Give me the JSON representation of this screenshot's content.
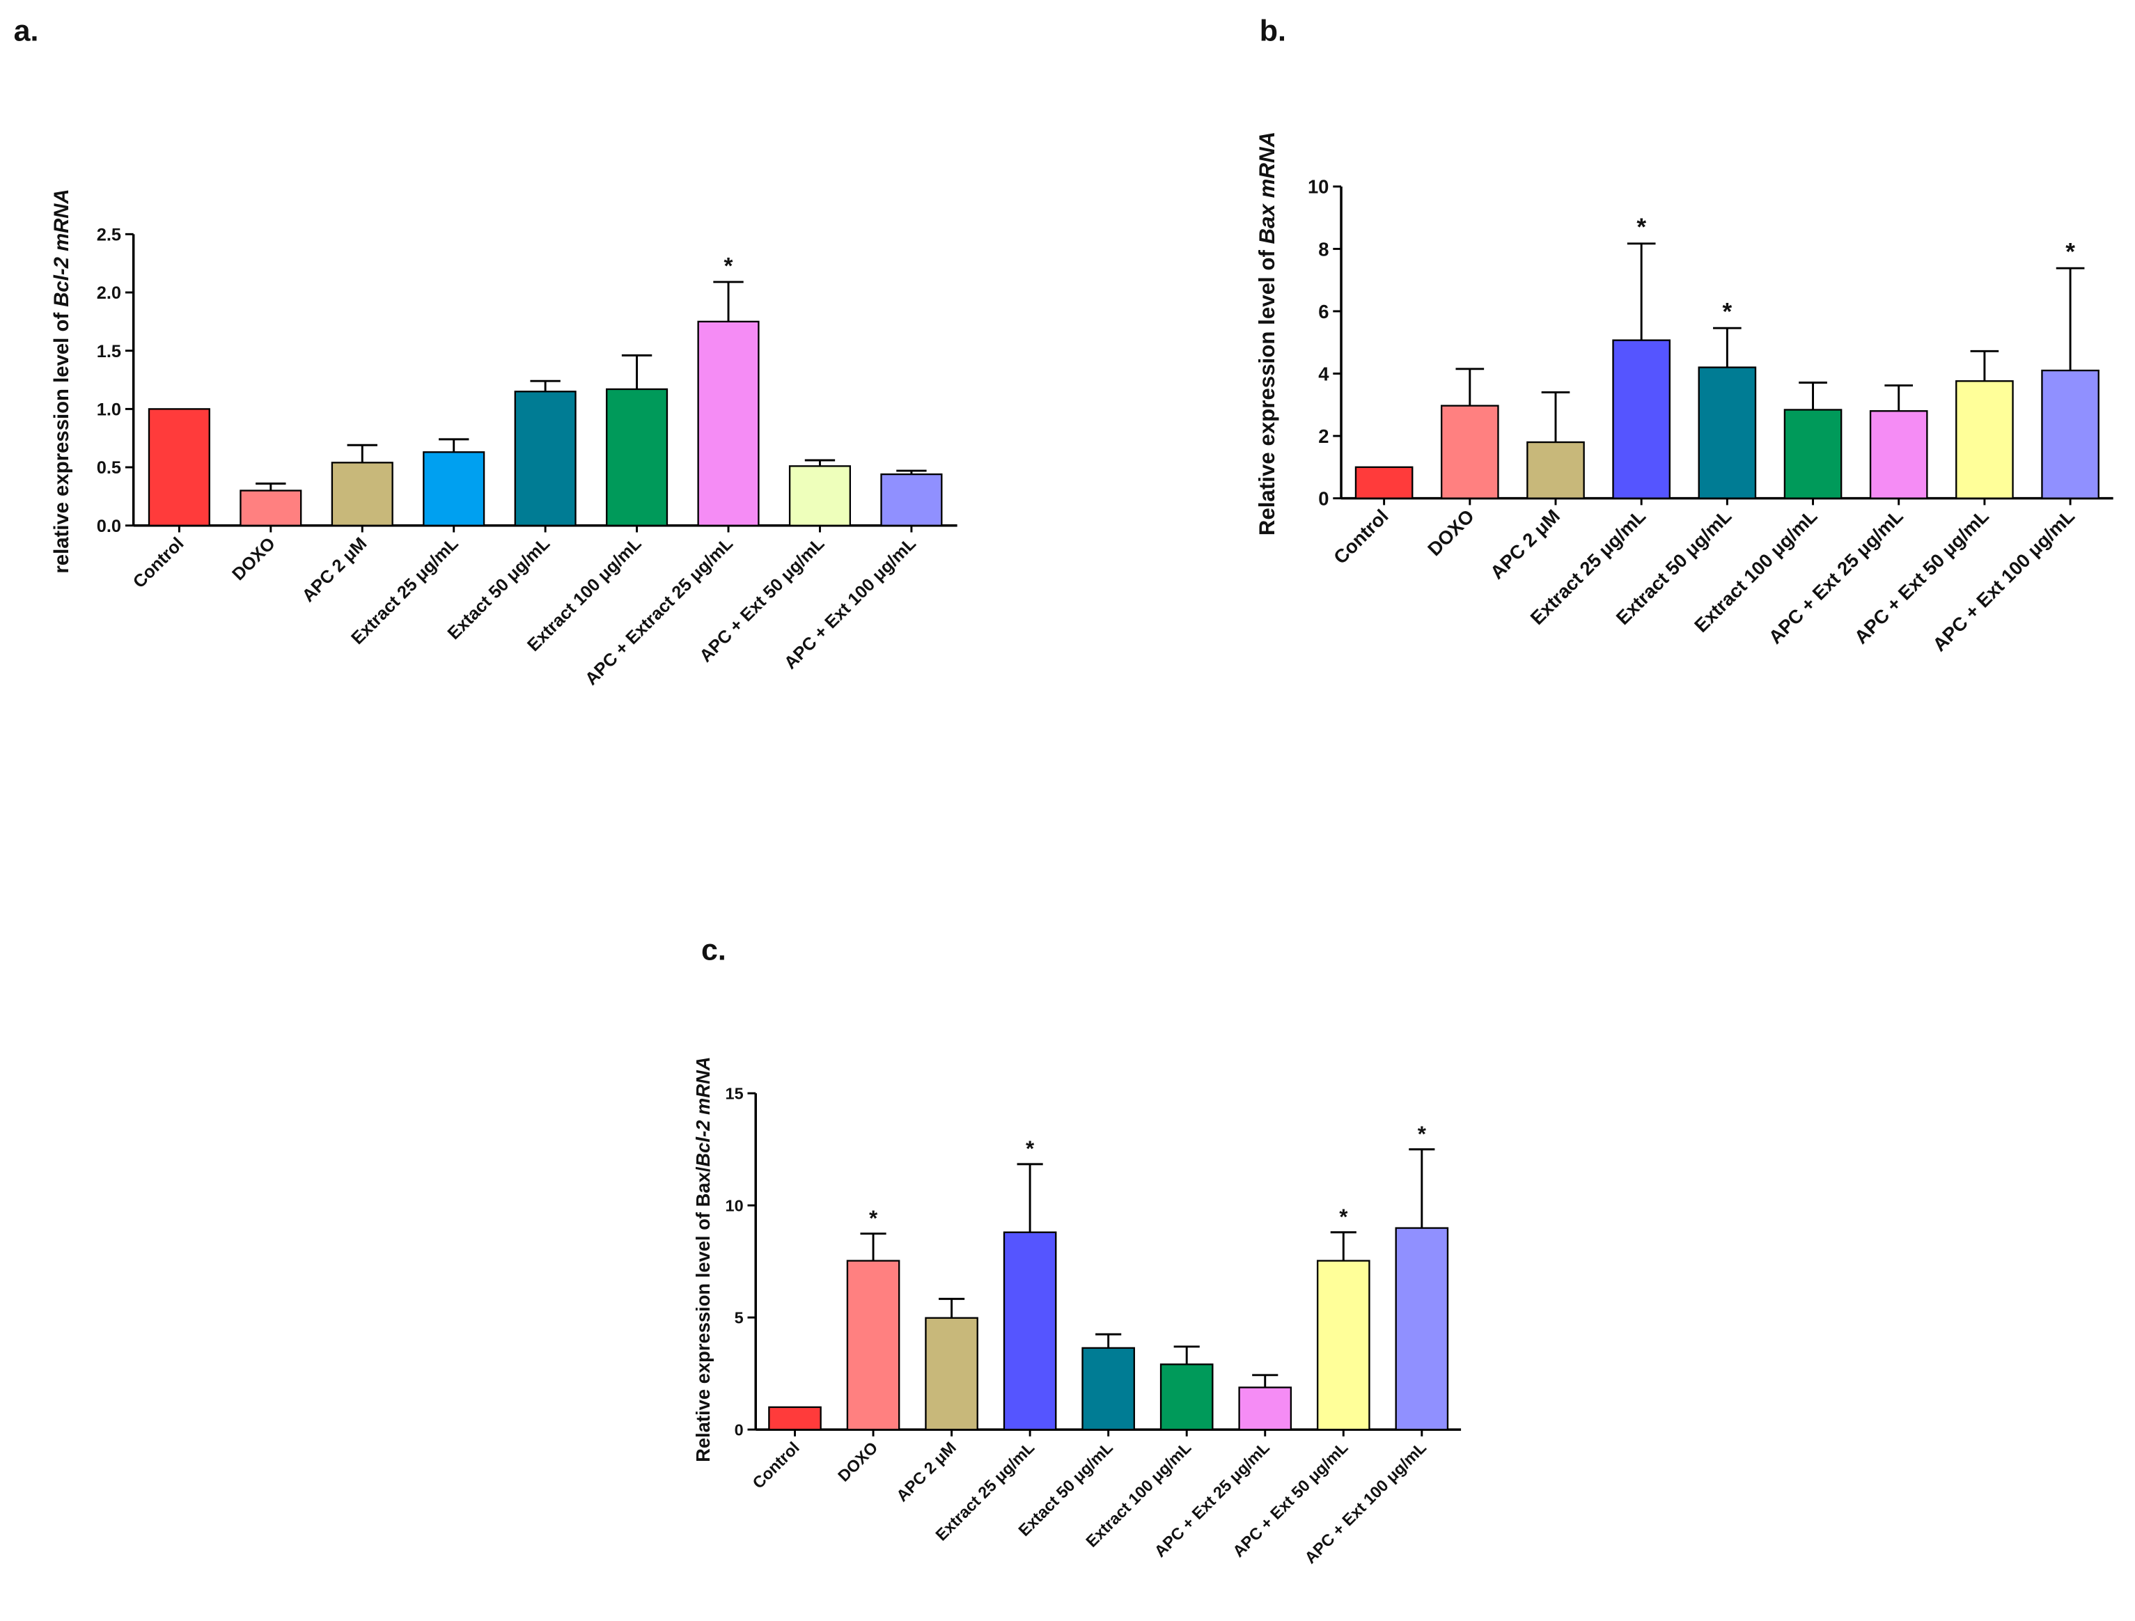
{
  "chart_data": [
    {
      "type": "bar",
      "panel": "a.",
      "y_label": {
        "text": "relative expression level of ",
        "italic": "Bcl-2 mRNA"
      },
      "categories": [
        "Control",
        "DOXO",
        "APC 2 μM",
        "Extract 25 μg/mL",
        "Extact 50 μg/mL",
        "Extract 100 μg/mL",
        "APC + Extract 25 μg/mL",
        "APC + Ext 50 μg/mL",
        "APC + Ext 100 μg/mL"
      ],
      "values": [
        1.0,
        0.3,
        0.54,
        0.63,
        1.15,
        1.17,
        1.75,
        0.51,
        0.44
      ],
      "errors": [
        null,
        0.06,
        0.15,
        0.11,
        0.09,
        0.29,
        0.34,
        0.05,
        0.03
      ],
      "significance": [
        null,
        null,
        null,
        null,
        null,
        null,
        "*",
        null,
        null
      ],
      "colors": [
        "#ff3b3b",
        "#ff8080",
        "#c8b87a",
        "#00a0f0",
        "#007c94",
        "#009a5a",
        "#f58cf5",
        "#eeffbb",
        "#9090ff"
      ],
      "ylim": [
        0,
        2.5
      ],
      "yticks": [
        {
          "value": 0,
          "label": "0.0"
        },
        0.5,
        {
          "value": 1,
          "label": "1.0"
        },
        1.5,
        {
          "value": 2,
          "label": "2.0"
        },
        2.5
      ]
    },
    {
      "type": "bar",
      "panel": "b.",
      "y_label": {
        "text": "Relative expression level of ",
        "italic": "Bax mRNA"
      },
      "categories": [
        "Control",
        "DOXO",
        "APC 2 μM",
        "Extract 25 μg/mL",
        "Extract 50 μg/mL",
        "Extract 100 μg/mL",
        "APC + Ext 25 μg/mL",
        "APC + Ext 50 μg/mL",
        "APC + Ext 100 μg/mL"
      ],
      "values": [
        1.0,
        2.97,
        1.8,
        5.07,
        4.2,
        2.84,
        2.8,
        3.76,
        4.1
      ],
      "errors": [
        null,
        1.18,
        1.6,
        3.1,
        1.26,
        0.87,
        0.82,
        0.96,
        3.28
      ],
      "significance": [
        null,
        null,
        null,
        "*",
        "*",
        null,
        null,
        null,
        "*"
      ],
      "colors": [
        "#ff3b3b",
        "#ff8080",
        "#c8b87a",
        "#5555ff",
        "#007c94",
        "#009a5a",
        "#f58cf5",
        "#ffff99",
        "#9090ff"
      ],
      "ylim": [
        0,
        10
      ],
      "yticks": [
        0,
        2,
        4,
        6,
        8,
        10
      ]
    },
    {
      "type": "bar",
      "panel": "c.",
      "y_label": {
        "text": "Relative expression level of Bax/",
        "italic": "Bcl-2 mRNA"
      },
      "categories": [
        "Control",
        "DOXO",
        "APC 2 μM",
        "Extract 25 μg/mL",
        "Extact 50 μg/mL",
        "Extract 100 μg/mL",
        "APC + Ext 25 μg/mL",
        "APC + Ext 50 μg/mL",
        "APC + Ext 100 μg/mL"
      ],
      "values": [
        1.0,
        7.53,
        4.98,
        8.8,
        3.64,
        2.91,
        1.88,
        7.53,
        8.99
      ],
      "errors": [
        null,
        1.21,
        0.85,
        3.04,
        0.61,
        0.79,
        0.55,
        1.27,
        3.51
      ],
      "significance": [
        null,
        "*",
        null,
        "*",
        null,
        null,
        null,
        "*",
        "*"
      ],
      "colors": [
        "#ff3b3b",
        "#ff8080",
        "#c8b87a",
        "#5555ff",
        "#007c94",
        "#009a5a",
        "#f58cf5",
        "#ffff99",
        "#9090ff"
      ],
      "ylim": [
        0,
        15
      ],
      "yticks": [
        0,
        5,
        10,
        15
      ]
    }
  ]
}
